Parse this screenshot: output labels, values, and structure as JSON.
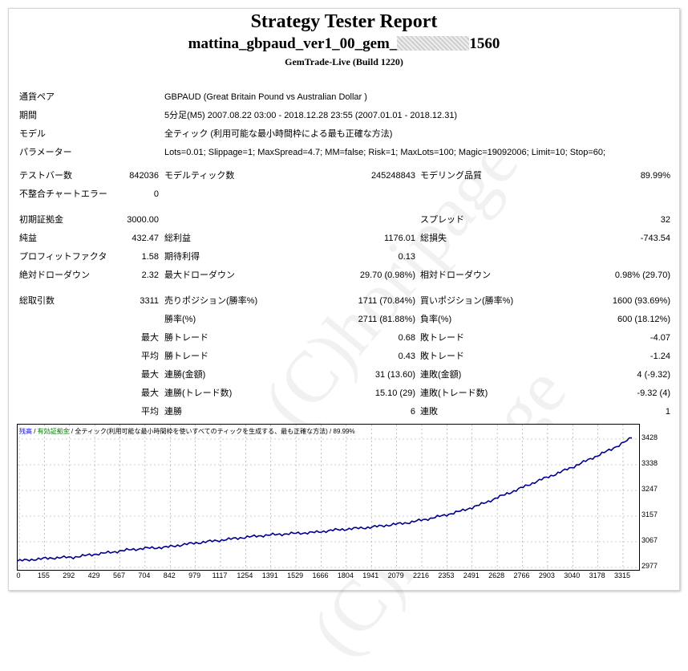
{
  "header": {
    "title": "Strategy Tester Report",
    "subtitle_prefix": "mattina_gbpaud_ver1_00_gem_",
    "subtitle_suffix": "1560",
    "build": "GemTrade-Live (Build 1220)"
  },
  "info": {
    "pair_label": "通貨ペア",
    "pair_value": "GBPAUD (Great Britain Pound vs Australian Dollar )",
    "period_label": "期間",
    "period_value": "5分足(M5) 2007.08.22 03:00 - 2018.12.28 23:55 (2007.01.01 - 2018.12.31)",
    "model_label": "モデル",
    "model_value": "全ティック (利用可能な最小時間枠による最も正確な方法)",
    "params_label": "パラメーター",
    "params_value": "Lots=0.01; Slippage=1; MaxSpread=4.7; MM=false; Risk=1; MaxLots=100; Magic=19092006; Limit=10; Stop=60;"
  },
  "stats": {
    "bars_label": "テストバー数",
    "bars": "842036",
    "ticks_label": "モデルティック数",
    "ticks": "245248843",
    "quality_label": "モデリング品質",
    "quality": "89.99%",
    "mismatch_label": "不整合チャートエラー",
    "mismatch": "0",
    "deposit_label": "初期証拠金",
    "deposit": "3000.00",
    "spread_label": "スプレッド",
    "spread": "32",
    "net_label": "純益",
    "net": "432.47",
    "gross_profit_label": "総利益",
    "gross_profit": "1176.01",
    "gross_loss_label": "総損失",
    "gross_loss": "-743.54",
    "pf_label": "プロフィットファクタ",
    "pf": "1.58",
    "expected_label": "期待利得",
    "expected": "0.13",
    "abs_dd_label": "絶対ドローダウン",
    "abs_dd": "2.32",
    "max_dd_label": "最大ドローダウン",
    "max_dd": "29.70 (0.98%)",
    "rel_dd_label": "相対ドローダウン",
    "rel_dd": "0.98% (29.70)",
    "total_label": "総取引数",
    "total": "3311",
    "short_label": "売りポジション(勝率%)",
    "short": "1711 (70.84%)",
    "long_label": "買いポジション(勝率%)",
    "long": "1600 (93.69%)",
    "win_label": "勝率(%)",
    "win": "2711 (81.88%)",
    "loss_label": "負率(%)",
    "loss": "600 (18.12%)",
    "max_word": "最大",
    "avg_word": "平均",
    "largest_win_label": "勝トレード",
    "largest_win": "0.68",
    "largest_loss_label": "敗トレード",
    "largest_loss": "-4.07",
    "avg_win_label": "勝トレード",
    "avg_win": "0.43",
    "avg_loss_label": "敗トレード",
    "avg_loss": "-1.24",
    "max_cons_win_amt_label": "連勝(金額)",
    "max_cons_win_amt": "31 (13.60)",
    "max_cons_loss_amt_label": "連敗(金額)",
    "max_cons_loss_amt": "4 (-9.32)",
    "max_cons_win_cnt_label": "連勝(トレード数)",
    "max_cons_win_cnt": "15.10 (29)",
    "max_cons_loss_cnt_label": "連敗(トレード数)",
    "max_cons_loss_cnt": "-9.32 (4)",
    "avg_cons_win_label": "連勝",
    "avg_cons_win": "6",
    "avg_cons_loss_label": "連敗",
    "avg_cons_loss": "1"
  },
  "legend": {
    "balance": "残高",
    "sep1": " / ",
    "margin": "有効証拠金",
    "sep2": " / ",
    "desc": "全ティック(利用可能な最小時間枠を使いすべてのティックを生成する、最も正確な方法) / 89.99%",
    "balance_color": "#0000ff",
    "margin_color": "#008000"
  },
  "watermark": "(C)horipage",
  "chart_data": {
    "type": "line",
    "x_ticks": [
      "0",
      "155",
      "292",
      "429",
      "567",
      "704",
      "842",
      "979",
      "1117",
      "1254",
      "1391",
      "1529",
      "1666",
      "1804",
      "1941",
      "2079",
      "2216",
      "2353",
      "2491",
      "2628",
      "2766",
      "2903",
      "3040",
      "3178",
      "3315"
    ],
    "y_ticks": [
      "3428",
      "3338",
      "3247",
      "3157",
      "3067",
      "2977"
    ],
    "xlim": [
      0,
      3350
    ],
    "ylim": [
      2977,
      3428
    ],
    "series": [
      {
        "color": "#00008b",
        "x": [
          0,
          100,
          200,
          300,
          400,
          500,
          600,
          700,
          800,
          900,
          1000,
          1100,
          1200,
          1300,
          1400,
          1500,
          1600,
          1700,
          1800,
          1900,
          2000,
          2100,
          2200,
          2300,
          2400,
          2500,
          2600,
          2700,
          2800,
          2900,
          3000,
          3100,
          3200,
          3311
        ],
        "values": [
          3000,
          3006,
          3011,
          3013,
          3022,
          3030,
          3039,
          3045,
          3048,
          3058,
          3066,
          3073,
          3081,
          3088,
          3093,
          3097,
          3100,
          3108,
          3113,
          3118,
          3126,
          3134,
          3146,
          3160,
          3177,
          3199,
          3226,
          3252,
          3280,
          3305,
          3332,
          3362,
          3392,
          3432
        ]
      }
    ]
  }
}
